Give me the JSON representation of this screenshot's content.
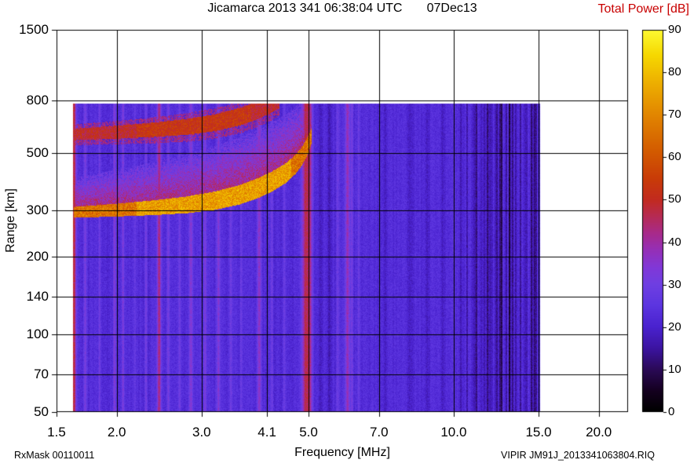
{
  "figure": {
    "title": "Jicamarca 2013 341 06:38:04 UTC       07Dec13",
    "colorbar_label": "Total Power [dB]",
    "colorbar_label_color": "#c80000",
    "footer_left": "RxMask 00110011",
    "footer_right": "VIPIR  JM91J_2013341063804.RIQ"
  },
  "chart_data": {
    "type": "heatmap",
    "title": "Jicamarca 2013 341 06:38:04 UTC  07Dec13",
    "xlabel": "Frequency [MHz]",
    "ylabel": "Range [km]",
    "x_scale": "log",
    "y_scale": "log",
    "xlim": [
      1.5,
      23.0
    ],
    "ylim": [
      50,
      1500
    ],
    "x_ticks": [
      1.5,
      2.0,
      3.0,
      4.1,
      5.0,
      7.0,
      10.0,
      15.0,
      20.0
    ],
    "x_tick_labels": [
      "1.5",
      "2.0",
      "3.0",
      "4.1",
      "5.0",
      "7.0",
      "10.0",
      "15.0",
      "20.0"
    ],
    "y_ticks": [
      50,
      70,
      100,
      140,
      200,
      300,
      500,
      800,
      1500
    ],
    "y_tick_labels": [
      "50",
      "70",
      "100",
      "140",
      "200",
      "300",
      "500",
      "800",
      "1500"
    ],
    "grid": true,
    "grid_color": "#000000",
    "colorbar": {
      "label": "Total Power [dB]",
      "min": 0,
      "max": 90,
      "ticks": [
        0,
        10,
        20,
        30,
        40,
        50,
        60,
        70,
        80,
        90
      ],
      "tick_labels": [
        "0",
        "10",
        "20",
        "30",
        "40",
        "50",
        "60",
        "70",
        "80",
        "90"
      ]
    },
    "colormap_stops": [
      {
        "v": 0,
        "c": "#000000"
      },
      {
        "v": 5,
        "c": "#150020"
      },
      {
        "v": 10,
        "c": "#2b0a58"
      },
      {
        "v": 15,
        "c": "#3c14a2"
      },
      {
        "v": 20,
        "c": "#4a22cf"
      },
      {
        "v": 25,
        "c": "#5c35e0"
      },
      {
        "v": 30,
        "c": "#6f3fe2"
      },
      {
        "v": 34,
        "c": "#8138d8"
      },
      {
        "v": 38,
        "c": "#9530b8"
      },
      {
        "v": 42,
        "c": "#a82a8c"
      },
      {
        "v": 46,
        "c": "#b62a55"
      },
      {
        "v": 50,
        "c": "#c22b20"
      },
      {
        "v": 55,
        "c": "#c93c08"
      },
      {
        "v": 62,
        "c": "#d45e00"
      },
      {
        "v": 70,
        "c": "#e28600"
      },
      {
        "v": 78,
        "c": "#eeb200"
      },
      {
        "v": 84,
        "c": "#f6d800"
      },
      {
        "v": 90,
        "c": "#fdfa32"
      }
    ],
    "background_db": 24,
    "noise_db": 6,
    "data_extent": {
      "freq_min": 1.62,
      "freq_max": 15.12,
      "range_min": 50,
      "range_max": 780
    },
    "rfi_stripes": [
      {
        "f": 1.63,
        "amp": 26,
        "sigma": 0.0035
      },
      {
        "f": 1.72,
        "amp": 8,
        "sigma": 0.002
      },
      {
        "f": 1.84,
        "amp": 7,
        "sigma": 0.002
      },
      {
        "f": 1.98,
        "amp": 11,
        "sigma": 0.002
      },
      {
        "f": 2.06,
        "amp": 9,
        "sigma": 0.002
      },
      {
        "f": 2.18,
        "amp": 6,
        "sigma": 0.002
      },
      {
        "f": 2.3,
        "amp": 7,
        "sigma": 0.002
      },
      {
        "f": 2.45,
        "amp": 20,
        "sigma": 0.003
      },
      {
        "f": 2.56,
        "amp": 8,
        "sigma": 0.002
      },
      {
        "f": 2.7,
        "amp": 7,
        "sigma": 0.002
      },
      {
        "f": 2.85,
        "amp": 12,
        "sigma": 0.0025
      },
      {
        "f": 3.05,
        "amp": 9,
        "sigma": 0.002
      },
      {
        "f": 3.25,
        "amp": 12,
        "sigma": 0.0025
      },
      {
        "f": 3.45,
        "amp": 6,
        "sigma": 0.002
      },
      {
        "f": 3.62,
        "amp": 6,
        "sigma": 0.002
      },
      {
        "f": 3.95,
        "amp": 13,
        "sigma": 0.003
      },
      {
        "f": 4.2,
        "amp": 7,
        "sigma": 0.002
      },
      {
        "f": 4.45,
        "amp": 6,
        "sigma": 0.002
      },
      {
        "f": 4.92,
        "amp": 22,
        "sigma": 0.005
      },
      {
        "f": 5.03,
        "amp": 18,
        "sigma": 0.004
      },
      {
        "f": 5.3,
        "amp": -5,
        "sigma": 0.003
      },
      {
        "f": 5.52,
        "amp": -7,
        "sigma": 0.003
      },
      {
        "f": 5.75,
        "amp": 6,
        "sigma": 0.002
      },
      {
        "f": 6.02,
        "amp": 16,
        "sigma": 0.003
      },
      {
        "f": 6.15,
        "amp": 8,
        "sigma": 0.002
      },
      {
        "f": 6.35,
        "amp": 5,
        "sigma": 0.002
      },
      {
        "f": 7.2,
        "amp": -4,
        "sigma": 0.003
      },
      {
        "f": 8.1,
        "amp": -5,
        "sigma": 0.003
      },
      {
        "f": 8.8,
        "amp": -4,
        "sigma": 0.0025
      },
      {
        "f": 9.5,
        "amp": -4,
        "sigma": 0.0025
      }
    ],
    "striation_band": {
      "freq_min": 10.1,
      "freq_max": 15.12,
      "max_reduction_db": 16
    },
    "echo_trace": {
      "points": [
        [
          1.63,
          296
        ],
        [
          2.0,
          302
        ],
        [
          2.4,
          309
        ],
        [
          2.8,
          317
        ],
        [
          3.2,
          329
        ],
        [
          3.6,
          347
        ],
        [
          3.9,
          366
        ],
        [
          4.2,
          390
        ],
        [
          4.5,
          422
        ],
        [
          4.7,
          455
        ],
        [
          4.85,
          490
        ],
        [
          4.95,
          525
        ],
        [
          5.02,
          555
        ],
        [
          5.08,
          590
        ]
      ],
      "half_thickness": {
        "base": 14,
        "per_mhz": 8
      },
      "peak_db": 64,
      "mid_boost_db": 8,
      "mid_boost_range": [
        2.2,
        4.6
      ],
      "speckle_db": 16
    },
    "spread_f_cloud": {
      "height_km_base": 90,
      "height_km_per_mhz": 55,
      "db": 42,
      "speckle_db": 14
    },
    "second_hop": {
      "range_multiple": 2,
      "freq_max": 4.35,
      "half_thickness": {
        "base": 30,
        "per_mhz": 12
      },
      "peak_db": 48,
      "mid_boost_db": 4,
      "mid_boost_range": [
        2.2,
        3.8
      ],
      "speckle_db": 12
    }
  }
}
